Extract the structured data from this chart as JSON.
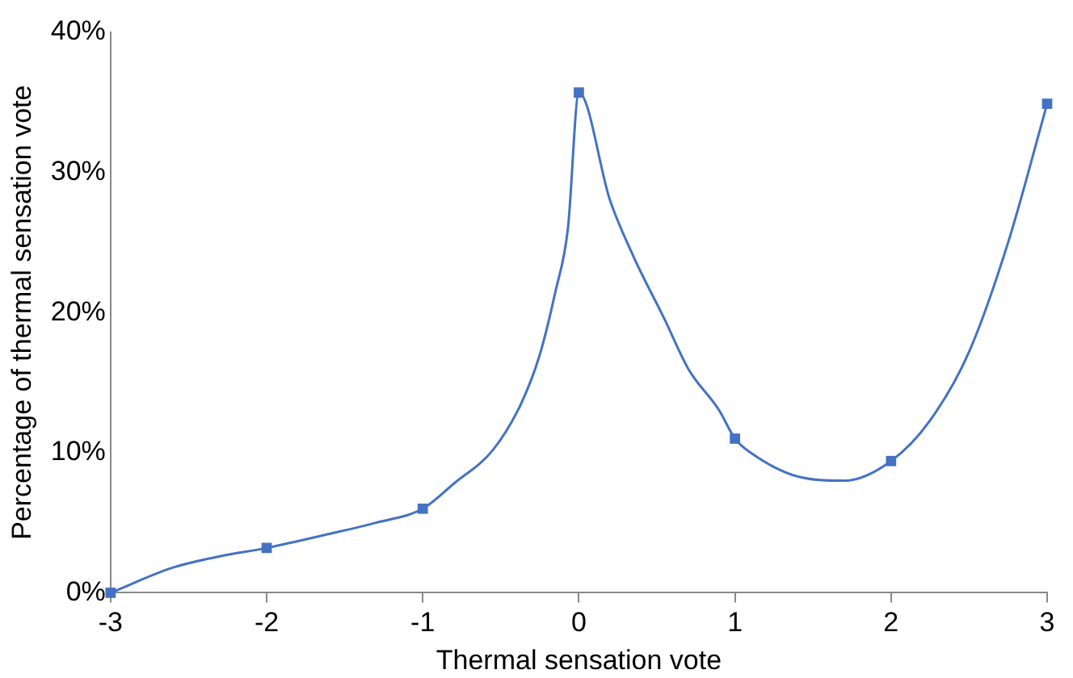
{
  "chart_data": {
    "type": "scatter",
    "xlabel": "Thermal sensation vote",
    "ylabel": "Percentage of thermal sensation vote",
    "xlim": [
      -3,
      3
    ],
    "xticks": [
      -3,
      -2,
      -1,
      0,
      1,
      2,
      3
    ],
    "ylim": [
      0,
      40
    ],
    "yticks": [
      {
        "value": 0,
        "label": "0%"
      },
      {
        "value": 10,
        "label": "10%"
      },
      {
        "value": 20,
        "label": "20%"
      },
      {
        "value": 30,
        "label": "30%"
      },
      {
        "value": 40,
        "label": "40%"
      }
    ],
    "grid": false,
    "legend": false,
    "series": [
      {
        "type": "line",
        "color": "#4472c4",
        "marker": "none",
        "line_style": "solid",
        "x": [
          -3,
          -2.6,
          -2.3,
          -2,
          -1.6,
          -1.3,
          -1,
          -0.8,
          -0.55,
          -0.37,
          -0.25,
          -0.15,
          -0.07,
          0,
          0.2,
          0.35,
          0.55,
          0.7,
          0.9,
          1,
          1.1,
          1.4,
          1.7,
          2,
          2.25,
          2.5,
          2.75,
          3
        ],
        "values": [
          0,
          1.8,
          2.6,
          3.2,
          4.2,
          5,
          6,
          7.8,
          10.2,
          13.5,
          17,
          21.5,
          26,
          35.7,
          28,
          24,
          19.5,
          16,
          13,
          11,
          10,
          8.3,
          8,
          9.4,
          12.3,
          17.2,
          25,
          34.9
        ]
      },
      {
        "type": "scatter",
        "color": "#4472c4",
        "marker": "square",
        "x": [
          -3,
          -2,
          -1,
          0,
          1,
          2,
          3
        ],
        "values": [
          0,
          3.2,
          6,
          35.7,
          11,
          9.4,
          34.9
        ]
      }
    ]
  }
}
